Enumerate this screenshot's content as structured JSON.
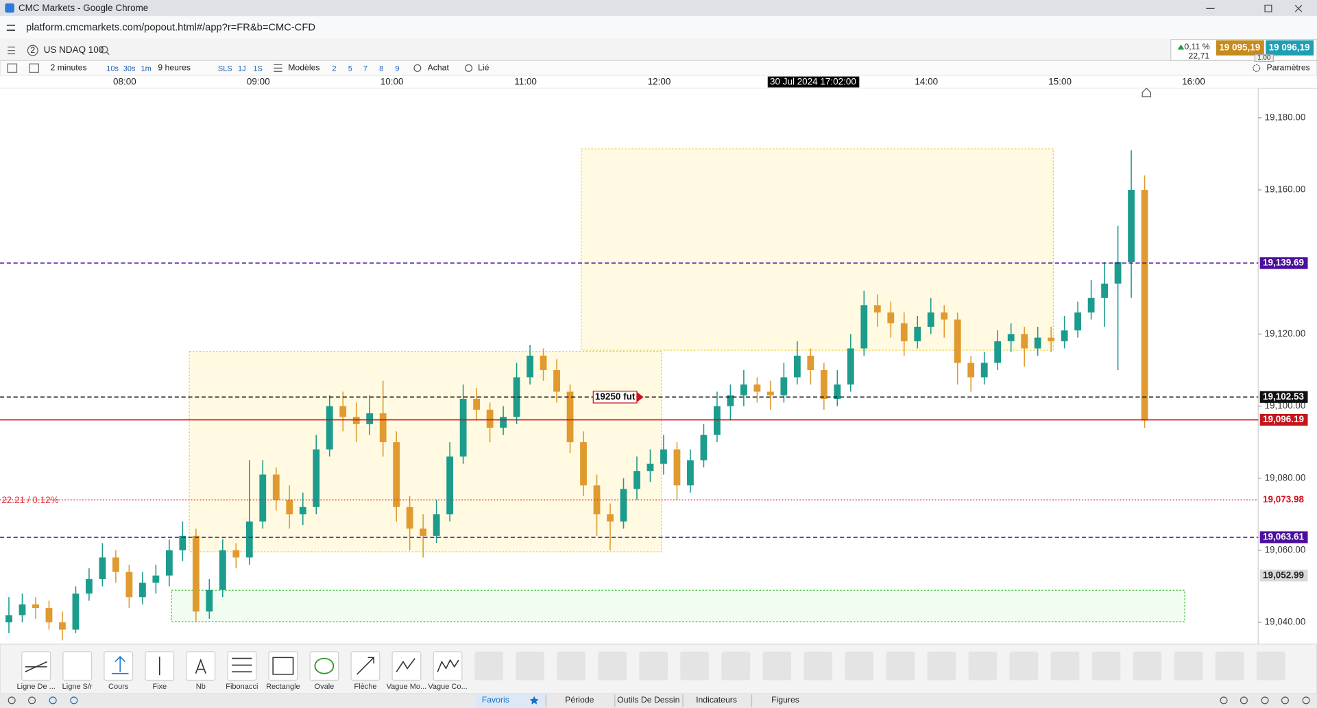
{
  "window": {
    "title": "CMC Markets - Google Chrome"
  },
  "browser": {
    "url": "platform.cmcmarkets.com/popout.html#/app?r=FR&b=CMC-CFD"
  },
  "instrument": {
    "badge": "2",
    "name": "US NDAQ 100",
    "change": "0,11 %",
    "change_points": "22,71",
    "sell": "19 095,19",
    "buy": "19 096,19",
    "quantity": "1.00"
  },
  "toolbar": {
    "interval": "2 minutes",
    "intervals": [
      "10s",
      "30s",
      "1m"
    ],
    "range": "9 heures",
    "periods": [
      "SLS",
      "1J",
      "1S"
    ],
    "templates": "Modèles",
    "presets": [
      "2",
      "5",
      "7",
      "8",
      "9"
    ],
    "order": "Achat",
    "link": "Lié",
    "settings": "Paramètres"
  },
  "chart_data": {
    "type": "candlestick",
    "up_color": "#1c9c8c",
    "down_color": "#e09a2f",
    "xlim": [
      "07:04",
      "16:29"
    ],
    "xticks": [
      "08:00",
      "09:00",
      "10:00",
      "11:00",
      "12:00",
      "14:00",
      "15:00",
      "16:00"
    ],
    "ylim": [
      19034.2,
      19188.2
    ],
    "yticks": [
      {
        "value": 19180,
        "label": "19,180.00"
      },
      {
        "value": 19160,
        "label": "19,160.00"
      },
      {
        "value": 19120,
        "label": "19,120.00"
      },
      {
        "value": 19100,
        "label": "19,100.00"
      },
      {
        "value": 19080,
        "label": "19,080.00"
      },
      {
        "value": 19060,
        "label": "19,060.00"
      },
      {
        "value": 19040,
        "label": "19,040.00"
      }
    ],
    "crosshair_label": "30 Jul 2024 17:02:00",
    "levels": [
      {
        "value": 19139.69,
        "label": "19,139.69",
        "line": "dashed",
        "color": "#4b0f9e",
        "label_fill": "#4b0f9e",
        "label_text": "#ffffff"
      },
      {
        "value": 19102.53,
        "label": "19,102.53",
        "line": "dashed",
        "color": "#111111",
        "label_fill": "#111111",
        "label_text": "#ffffff"
      },
      {
        "value": 19096.19,
        "label": "19,096.19",
        "line": "solid",
        "color": "#d0101b",
        "label_fill": "#c4161c",
        "label_text": "#ffffff"
      },
      {
        "value": 19073.98,
        "label": "19,073.98",
        "line": "dotted",
        "color": "#e0303a",
        "label_fill": "#ffffff",
        "label_text": "#d0101b",
        "note": "22.21 / 0.12%"
      },
      {
        "value": 19063.61,
        "label": "19,063.61",
        "line": "dashed",
        "color": "#4b0f9e",
        "label_fill": "#4b0f9e",
        "label_text": "#ffffff"
      },
      {
        "value": 19052.99,
        "label": "19,052.99",
        "line": "none",
        "color": "#888888",
        "label_fill": "#d9d9d9",
        "label_text": "#222222"
      }
    ],
    "zones": [
      {
        "x": [
          "08:29",
          "12:01"
        ],
        "y": [
          19059.6,
          19115.2
        ],
        "fill": "#fff6c8",
        "stroke": "#e6d030"
      },
      {
        "x": [
          "11:25",
          "14:57"
        ],
        "y": [
          19115.5,
          19171.4
        ],
        "fill": "#fff6c8",
        "stroke": "#e6d030"
      },
      {
        "x": [
          "08:21",
          "15:56"
        ],
        "y": [
          19040.2,
          19048.9
        ],
        "fill": "#e6fbe6",
        "stroke": "#36c236"
      }
    ],
    "annotations": [
      {
        "x": "11:50",
        "y": 19102.5,
        "text": "19250 fut",
        "color": "#d0101b"
      }
    ],
    "candles": [
      [
        "07:08",
        19040,
        19047,
        19037,
        19042
      ],
      [
        "07:14",
        19042,
        19048,
        19040,
        19045
      ],
      [
        "07:20",
        19045,
        19047,
        19041,
        19044
      ],
      [
        "07:26",
        19044,
        19046,
        19038,
        19040
      ],
      [
        "07:32",
        19040,
        19043,
        19035,
        19038
      ],
      [
        "07:38",
        19038,
        19050,
        19037,
        19048
      ],
      [
        "07:44",
        19048,
        19055,
        19046,
        19052
      ],
      [
        "07:50",
        19052,
        19062,
        19050,
        19058
      ],
      [
        "07:56",
        19058,
        19060,
        19051,
        19054
      ],
      [
        "08:02",
        19054,
        19056,
        19044,
        19047
      ],
      [
        "08:08",
        19047,
        19054,
        19045,
        19051
      ],
      [
        "08:14",
        19051,
        19056,
        19048,
        19053
      ],
      [
        "08:20",
        19053,
        19063,
        19050,
        19060
      ],
      [
        "08:26",
        19060,
        19068,
        19057,
        19064
      ],
      [
        "08:32",
        19064,
        19066,
        19040,
        19043
      ],
      [
        "08:38",
        19043,
        19052,
        19041,
        19049
      ],
      [
        "08:44",
        19049,
        19063,
        19047,
        19060
      ],
      [
        "08:50",
        19060,
        19062,
        19055,
        19058
      ],
      [
        "08:56",
        19058,
        19085,
        19056,
        19068
      ],
      [
        "09:02",
        19068,
        19085,
        19066,
        19081
      ],
      [
        "09:08",
        19081,
        19083,
        19071,
        19074
      ],
      [
        "09:14",
        19074,
        19078,
        19066,
        19070
      ],
      [
        "09:20",
        19070,
        19076,
        19067,
        19072
      ],
      [
        "09:26",
        19072,
        19092,
        19070,
        19088
      ],
      [
        "09:32",
        19088,
        19103,
        19086,
        19100
      ],
      [
        "09:38",
        19100,
        19104,
        19093,
        19097
      ],
      [
        "09:44",
        19097,
        19101,
        19090,
        19095
      ],
      [
        "09:50",
        19095,
        19103,
        19092,
        19098
      ],
      [
        "09:56",
        19098,
        19107,
        19086,
        19090
      ],
      [
        "10:02",
        19090,
        19093,
        19068,
        19072
      ],
      [
        "10:08",
        19072,
        19075,
        19060,
        19066
      ],
      [
        "10:14",
        19066,
        19070,
        19058,
        19064
      ],
      [
        "10:20",
        19064,
        19074,
        19062,
        19070
      ],
      [
        "10:26",
        19070,
        19090,
        19068,
        19086
      ],
      [
        "10:32",
        19086,
        19106,
        19084,
        19102
      ],
      [
        "10:38",
        19102,
        19105,
        19096,
        19099
      ],
      [
        "10:44",
        19099,
        19101,
        19090,
        19094
      ],
      [
        "10:50",
        19094,
        19100,
        19092,
        19097
      ],
      [
        "10:56",
        19097,
        19112,
        19095,
        19108
      ],
      [
        "11:02",
        19108,
        19117,
        19106,
        19114
      ],
      [
        "11:08",
        19114,
        19116,
        19107,
        19110
      ],
      [
        "11:14",
        19110,
        19113,
        19101,
        19104
      ],
      [
        "11:20",
        19104,
        19106,
        19087,
        19090
      ],
      [
        "11:26",
        19090,
        19093,
        19075,
        19078
      ],
      [
        "11:32",
        19078,
        19081,
        19064,
        19070
      ],
      [
        "11:38",
        19070,
        19073,
        19060,
        19068
      ],
      [
        "11:44",
        19068,
        19080,
        19066,
        19077
      ],
      [
        "11:50",
        19077,
        19086,
        19074,
        19082
      ],
      [
        "11:56",
        19082,
        19088,
        19079,
        19084
      ],
      [
        "12:02",
        19084,
        19092,
        19081,
        19088
      ],
      [
        "12:08",
        19088,
        19090,
        19074,
        19078
      ],
      [
        "12:14",
        19078,
        19088,
        19076,
        19085
      ],
      [
        "12:20",
        19085,
        19095,
        19083,
        19092
      ],
      [
        "12:26",
        19092,
        19104,
        19090,
        19100
      ],
      [
        "12:32",
        19100,
        19106,
        19096,
        19103
      ],
      [
        "12:38",
        19103,
        19110,
        19100,
        19106
      ],
      [
        "12:44",
        19106,
        19108,
        19101,
        19104
      ],
      [
        "12:50",
        19104,
        19107,
        19099,
        19103
      ],
      [
        "12:56",
        19103,
        19112,
        19101,
        19108
      ],
      [
        "13:02",
        19108,
        19118,
        19106,
        19114
      ],
      [
        "13:08",
        19114,
        19116,
        19106,
        19110
      ],
      [
        "13:14",
        19110,
        19112,
        19099,
        19102
      ],
      [
        "13:20",
        19102,
        19110,
        19100,
        19106
      ],
      [
        "13:26",
        19106,
        19120,
        19104,
        19116
      ],
      [
        "13:32",
        19116,
        19132,
        19114,
        19128
      ],
      [
        "13:38",
        19128,
        19131,
        19122,
        19126
      ],
      [
        "13:44",
        19126,
        19129,
        19119,
        19123
      ],
      [
        "13:50",
        19123,
        19126,
        19114,
        19118
      ],
      [
        "13:56",
        19118,
        19125,
        19116,
        19122
      ],
      [
        "14:02",
        19122,
        19130,
        19120,
        19126
      ],
      [
        "14:08",
        19126,
        19128,
        19119,
        19124
      ],
      [
        "14:14",
        19124,
        19126,
        19106,
        19112
      ],
      [
        "14:20",
        19112,
        19114,
        19104,
        19108
      ],
      [
        "14:26",
        19108,
        19115,
        19106,
        19112
      ],
      [
        "14:32",
        19112,
        19121,
        19110,
        19118
      ],
      [
        "14:38",
        19118,
        19123,
        19115,
        19120
      ],
      [
        "14:44",
        19120,
        19122,
        19111,
        19116
      ],
      [
        "14:50",
        19116,
        19122,
        19114,
        19119
      ],
      [
        "14:56",
        19119,
        19122,
        19115,
        19118
      ],
      [
        "15:02",
        19118,
        19125,
        19116,
        19121
      ],
      [
        "15:08",
        19121,
        19129,
        19119,
        19126
      ],
      [
        "15:14",
        19126,
        19135,
        19124,
        19130
      ],
      [
        "15:20",
        19130,
        19140,
        19122,
        19134
      ],
      [
        "15:26",
        19134,
        19150,
        19110,
        19140
      ],
      [
        "15:32",
        19140,
        19171,
        19130,
        19160
      ],
      [
        "15:38",
        19160,
        19164,
        19094,
        19096
      ]
    ]
  },
  "drawing_tools": [
    "Ligne De ...",
    "Ligne S/r",
    "Cours",
    "Fixe",
    "Nb",
    "Fibonacci",
    "Rectangle",
    "Ovale",
    "Flèche",
    "Vague Mo...",
    "Vague Co..."
  ],
  "tabs": [
    "Favoris",
    "Période",
    "Outils De Dessin",
    "Indicateurs",
    "Figures"
  ]
}
